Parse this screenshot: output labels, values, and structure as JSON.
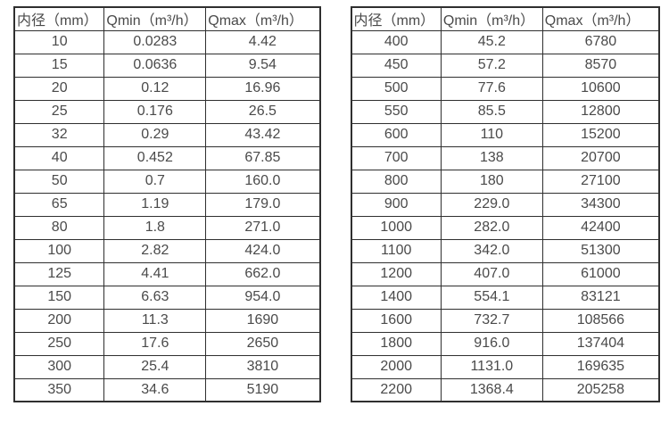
{
  "colors": {
    "background": "#ffffff",
    "table_border": "#2f2f2f",
    "text": "#4a4a4a"
  },
  "chart_data": [
    {
      "type": "table",
      "title": "",
      "columns": [
        "内径（mm）",
        "Qmin（m³/h）",
        "Qmax（m³/h）"
      ],
      "rows": [
        [
          "10",
          "0.0283",
          "4.42"
        ],
        [
          "15",
          "0.0636",
          "9.54"
        ],
        [
          "20",
          "0.12",
          "16.96"
        ],
        [
          "25",
          "0.176",
          "26.5"
        ],
        [
          "32",
          "0.29",
          "43.42"
        ],
        [
          "40",
          "0.452",
          "67.85"
        ],
        [
          "50",
          "0.7",
          "160.0"
        ],
        [
          "65",
          "1.19",
          "179.0"
        ],
        [
          "80",
          "1.8",
          "271.0"
        ],
        [
          "100",
          "2.82",
          "424.0"
        ],
        [
          "125",
          "4.41",
          "662.0"
        ],
        [
          "150",
          "6.63",
          "954.0"
        ],
        [
          "200",
          "11.3",
          "1690"
        ],
        [
          "250",
          "17.6",
          "2650"
        ],
        [
          "300",
          "25.4",
          "3810"
        ],
        [
          "350",
          "34.6",
          "5190"
        ]
      ]
    },
    {
      "type": "table",
      "title": "",
      "columns": [
        "内径（mm）",
        "Qmin（m³/h）",
        "Qmax（m³/h）"
      ],
      "rows": [
        [
          "400",
          "45.2",
          "6780"
        ],
        [
          "450",
          "57.2",
          "8570"
        ],
        [
          "500",
          "77.6",
          "10600"
        ],
        [
          "550",
          "85.5",
          "12800"
        ],
        [
          "600",
          "110",
          "15200"
        ],
        [
          "700",
          "138",
          "20700"
        ],
        [
          "800",
          "180",
          "27100"
        ],
        [
          "900",
          "229.0",
          "34300"
        ],
        [
          "1000",
          "282.0",
          "42400"
        ],
        [
          "1100",
          "342.0",
          "51300"
        ],
        [
          "1200",
          "407.0",
          "61000"
        ],
        [
          "1400",
          "554.1",
          "83121"
        ],
        [
          "1600",
          "732.7",
          "108566"
        ],
        [
          "1800",
          "916.0",
          "137404"
        ],
        [
          "2000",
          "1131.0",
          "169635"
        ],
        [
          "2200",
          "1368.4",
          "205258"
        ]
      ]
    }
  ]
}
